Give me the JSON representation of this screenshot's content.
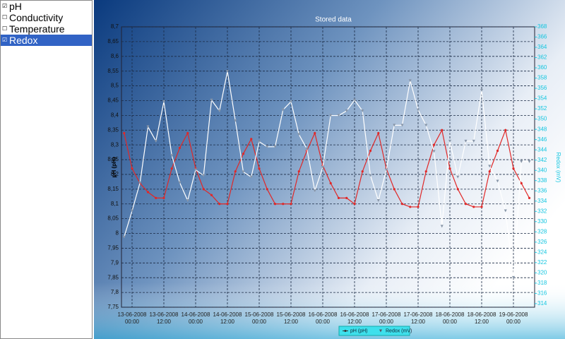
{
  "sidebar": {
    "items": [
      {
        "label": "pH",
        "checked": true,
        "selected": false
      },
      {
        "label": "Conductivity",
        "checked": false,
        "selected": false
      },
      {
        "label": "Temperature",
        "checked": false,
        "selected": false
      },
      {
        "label": "Redox",
        "checked": true,
        "selected": true
      }
    ]
  },
  "chart_data": {
    "type": "line",
    "title": "Stored data",
    "y_label": "pH (pH)",
    "y2_label": "Redox (mV)",
    "x": [
      "2008-06-12T21:00",
      "2008-06-13T00:00",
      "2008-06-13T03:00",
      "2008-06-13T06:00",
      "2008-06-13T09:00",
      "2008-06-13T12:00",
      "2008-06-13T15:00",
      "2008-06-13T18:00",
      "2008-06-13T21:00",
      "2008-06-14T00:00",
      "2008-06-14T03:00",
      "2008-06-14T06:00",
      "2008-06-14T09:00",
      "2008-06-14T12:00",
      "2008-06-14T15:00",
      "2008-06-14T18:00",
      "2008-06-14T21:00",
      "2008-06-15T00:00",
      "2008-06-15T03:00",
      "2008-06-15T06:00",
      "2008-06-15T09:00",
      "2008-06-15T12:00",
      "2008-06-15T15:00",
      "2008-06-15T18:00",
      "2008-06-15T21:00",
      "2008-06-16T00:00",
      "2008-06-16T03:00",
      "2008-06-16T06:00",
      "2008-06-16T09:00",
      "2008-06-16T12:00",
      "2008-06-16T15:00",
      "2008-06-16T18:00",
      "2008-06-16T21:00",
      "2008-06-17T00:00",
      "2008-06-17T03:00",
      "2008-06-17T06:00",
      "2008-06-17T09:00",
      "2008-06-17T12:00",
      "2008-06-17T15:00",
      "2008-06-17T18:00",
      "2008-06-17T21:00",
      "2008-06-18T00:00",
      "2008-06-18T03:00",
      "2008-06-18T06:00",
      "2008-06-18T09:00",
      "2008-06-18T12:00",
      "2008-06-18T15:00",
      "2008-06-18T18:00",
      "2008-06-18T21:00",
      "2008-06-19T00:00",
      "2008-06-19T03:00",
      "2008-06-19T06:00"
    ],
    "series": [
      {
        "name": "pH (pH)",
        "color": "#e02828",
        "marker": "circle",
        "values": [
          8.34,
          8.22,
          8.17,
          8.14,
          8.12,
          8.12,
          8.22,
          8.29,
          8.34,
          8.22,
          8.15,
          8.13,
          8.1,
          8.1,
          8.21,
          8.27,
          8.32,
          8.22,
          8.15,
          8.1,
          8.1,
          8.1,
          8.21,
          8.28,
          8.34,
          8.23,
          8.17,
          8.12,
          8.12,
          8.1,
          8.21,
          8.28,
          8.34,
          8.22,
          8.15,
          8.1,
          8.09,
          8.09,
          8.21,
          8.3,
          8.35,
          8.22,
          8.15,
          8.1,
          8.09,
          8.09,
          8.21,
          8.28,
          8.35,
          8.22,
          8.17,
          8.12
        ]
      },
      {
        "name": "Redox (mV)",
        "color": "#ffffff",
        "marker": "triangle",
        "axis": "y2",
        "values": [
          327,
          332.1,
          337.6,
          348.5,
          345.7,
          353.4,
          342.9,
          337.6,
          334.1,
          340.1,
          339,
          353.7,
          351.6,
          359.3,
          349.7,
          339.7,
          338.7,
          345.6,
          344.6,
          344.6,
          351.8,
          353.4,
          347,
          344.2,
          336,
          340.6,
          350.7,
          350.7,
          351.6,
          353.7,
          351.6,
          339,
          334.1,
          340.1,
          348.8,
          348.8,
          357.5,
          351.8,
          348.8,
          343.7,
          329.1,
          345.7,
          338.7,
          345.7,
          345.7,
          355.6,
          340.8,
          337.9,
          332.1,
          319.1,
          341.7,
          341.7
        ]
      }
    ],
    "xlim": [
      "2008-06-12T20:00",
      "2008-06-19T08:00"
    ],
    "xticks": [
      {
        "value": "2008-06-13T00:00",
        "label": "13-06-2008\n00:00"
      },
      {
        "value": "2008-06-13T12:00",
        "label": "13-06-2008\n12:00"
      },
      {
        "value": "2008-06-14T00:00",
        "label": "14-06-2008\n00:00"
      },
      {
        "value": "2008-06-14T12:00",
        "label": "14-06-2008\n12:00"
      },
      {
        "value": "2008-06-15T00:00",
        "label": "15-06-2008\n00:00"
      },
      {
        "value": "2008-06-15T12:00",
        "label": "15-06-2008\n12:00"
      },
      {
        "value": "2008-06-16T00:00",
        "label": "16-06-2008\n00:00"
      },
      {
        "value": "2008-06-16T12:00",
        "label": "16-06-2008\n12:00"
      },
      {
        "value": "2008-06-17T00:00",
        "label": "17-06-2008\n00:00"
      },
      {
        "value": "2008-06-17T12:00",
        "label": "17-06-2008\n12:00"
      },
      {
        "value": "2008-06-18T00:00",
        "label": "18-06-2008\n00:00"
      },
      {
        "value": "2008-06-18T12:00",
        "label": "18-06-2008\n12:00"
      },
      {
        "value": "2008-06-19T00:00",
        "label": "19-06-2008\n00:00"
      }
    ],
    "ylim": [
      7.75,
      8.7
    ],
    "yticks": [
      {
        "value": 7.75,
        "label": "7,75"
      },
      {
        "value": 7.8,
        "label": "7,8"
      },
      {
        "value": 7.85,
        "label": "7,85"
      },
      {
        "value": 7.9,
        "label": "7,9"
      },
      {
        "value": 7.95,
        "label": "7,95"
      },
      {
        "value": 8,
        "label": "8"
      },
      {
        "value": 8.05,
        "label": "8,05"
      },
      {
        "value": 8.1,
        "label": "8,1"
      },
      {
        "value": 8.15,
        "label": "8,15"
      },
      {
        "value": 8.2,
        "label": "8,2"
      },
      {
        "value": 8.25,
        "label": "8,25"
      },
      {
        "value": 8.3,
        "label": "8,3"
      },
      {
        "value": 8.35,
        "label": "8,35"
      },
      {
        "value": 8.4,
        "label": "8,4"
      },
      {
        "value": 8.45,
        "label": "8,45"
      },
      {
        "value": 8.5,
        "label": "8,5"
      },
      {
        "value": 8.55,
        "label": "8,55"
      },
      {
        "value": 8.6,
        "label": "8,6"
      },
      {
        "value": 8.65,
        "label": "8,65"
      },
      {
        "value": 8.7,
        "label": "8,7"
      }
    ],
    "y2lim": [
      313.3,
      368
    ],
    "y2ticks": [
      314,
      316,
      318,
      320,
      322,
      324,
      326,
      328,
      330,
      332,
      334,
      336,
      338,
      340,
      342,
      344,
      346,
      348,
      350,
      352,
      354,
      356,
      358,
      360,
      362,
      364,
      366,
      368
    ],
    "y2_color": "#13c6e0",
    "grid": true
  }
}
